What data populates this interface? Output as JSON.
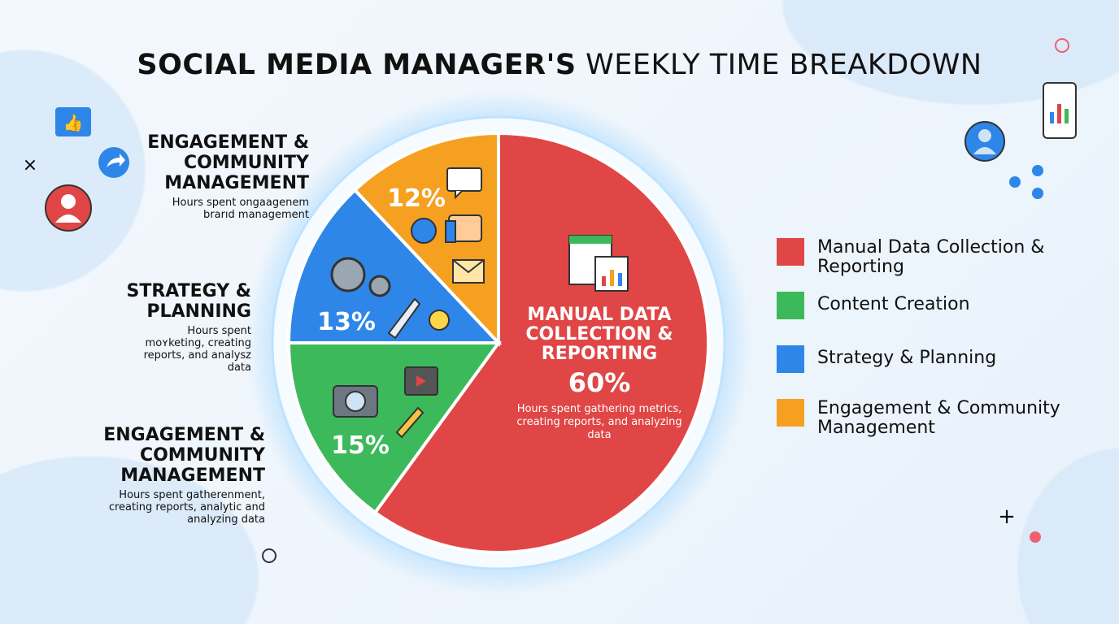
{
  "title": {
    "bold": "SOCIAL MEDIA MANAGER'S",
    "regular": "WEEKLY TIME BREAKDOWN"
  },
  "chart_data": {
    "type": "pie",
    "title": "SOCIAL MEDIA MANAGER'S WEEKLY TIME BREAKDOWN",
    "start": "top",
    "direction": "clockwise",
    "slices": [
      {
        "name": "Manual Data Collection & Reporting",
        "value": 60,
        "label": "60%",
        "color": "#e04646"
      },
      {
        "name": "Content Creation",
        "value": 15,
        "label": "15%",
        "color": "#3cb95a"
      },
      {
        "name": "Strategy & Planning",
        "value": 13,
        "label": "13%",
        "color": "#2e86e8"
      },
      {
        "name": "Engagement & Community Management",
        "value": 12,
        "label": "12%",
        "color": "#f5a020"
      }
    ],
    "center_label": {
      "heading": "MANUAL DATA COLLECTION & REPORTING",
      "value": "60%",
      "description": "Hours spent gathering metrics, creating reports, and analyzing data"
    },
    "legend": {
      "placement": "right",
      "entries": [
        "Manual Data Collection & Reporting",
        "Content Creation",
        "Strategy & Planning",
        "Engagement & Community Management"
      ]
    }
  },
  "side_labels": [
    {
      "heading": "ENGAGEMENT & COMMUNITY MANAGEMENT",
      "description": "Hours spent ongaagenem brarıd management"
    },
    {
      "heading": "STRATEGY & PLANNING",
      "description": "Hours spent moʏketing, creating reports, and analysz data"
    },
    {
      "heading": "ENGAGEMENT & COMMUNITY MANAGEMENT",
      "description": "Hours spent gatherenment, creating reports, analytic and analyzing data"
    }
  ],
  "icons": [
    "thumbs-up-icon",
    "share-icon",
    "user-icon",
    "close-icon",
    "smartphone-chart-icon",
    "network-icon",
    "spreadsheet-icon",
    "chat-icon",
    "like-icon",
    "email-icon",
    "gear-icon",
    "rocket-icon",
    "lightbulb-icon",
    "camera-icon",
    "video-icon",
    "pencil-icon",
    "plus-icon"
  ]
}
